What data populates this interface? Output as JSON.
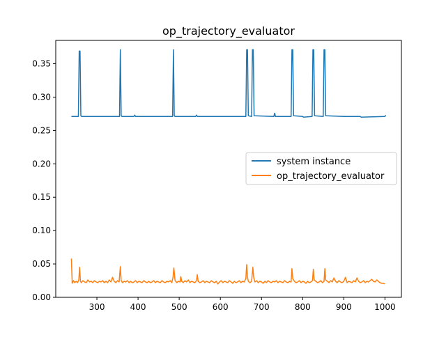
{
  "chart_data": {
    "type": "line",
    "title": "op_trajectory_evaluator",
    "xlabel": "",
    "ylabel": "",
    "xlim": [
      200,
      1040
    ],
    "ylim": [
      0,
      0.385
    ],
    "xticks": [
      300,
      400,
      500,
      600,
      700,
      800,
      900,
      1000
    ],
    "yticks": [
      0.0,
      0.05,
      0.1,
      0.15,
      0.2,
      0.25,
      0.3,
      0.35
    ],
    "ytick_labels": [
      "0.00",
      "0.05",
      "0.10",
      "0.15",
      "0.20",
      "0.25",
      "0.30",
      "0.35"
    ],
    "grid": false,
    "legend": {
      "placement": "center-right"
    },
    "series": [
      {
        "name": "system instance",
        "color": "#1f77b4",
        "x": [
          238,
          255,
          257,
          259,
          261,
          263,
          300,
          355,
          357,
          359,
          361,
          390,
          392,
          394,
          420,
          484,
          486,
          488,
          490,
          540,
          542,
          544,
          600,
          662,
          664,
          666,
          668,
          676,
          678,
          680,
          682,
          730,
          732,
          734,
          760,
          772,
          774,
          776,
          778,
          800,
          802,
          823,
          825,
          827,
          829,
          850,
          852,
          854,
          856,
          900,
          940,
          942,
          1000,
          1002
        ],
        "y": [
          0.271,
          0.271,
          0.369,
          0.369,
          0.272,
          0.271,
          0.271,
          0.271,
          0.371,
          0.272,
          0.271,
          0.271,
          0.273,
          0.271,
          0.271,
          0.271,
          0.371,
          0.272,
          0.271,
          0.271,
          0.273,
          0.271,
          0.271,
          0.271,
          0.371,
          0.371,
          0.272,
          0.271,
          0.371,
          0.371,
          0.272,
          0.271,
          0.276,
          0.271,
          0.271,
          0.271,
          0.371,
          0.371,
          0.272,
          0.271,
          0.27,
          0.271,
          0.371,
          0.371,
          0.272,
          0.271,
          0.371,
          0.371,
          0.272,
          0.271,
          0.271,
          0.27,
          0.271,
          0.273
        ]
      },
      {
        "name": "op_trajectory_evaluator",
        "color": "#ff7f0e",
        "x": [
          238,
          240,
          243,
          246,
          250,
          253,
          256,
          258,
          260,
          262,
          266,
          270,
          274,
          278,
          282,
          286,
          290,
          294,
          298,
          302,
          306,
          310,
          314,
          318,
          322,
          326,
          330,
          334,
          338,
          342,
          346,
          350,
          354,
          357,
          359,
          362,
          366,
          370,
          374,
          378,
          382,
          386,
          390,
          394,
          398,
          402,
          406,
          410,
          414,
          418,
          422,
          426,
          430,
          434,
          438,
          442,
          446,
          450,
          454,
          458,
          462,
          466,
          470,
          474,
          478,
          482,
          485,
          487,
          490,
          494,
          498,
          502,
          504,
          506,
          510,
          514,
          518,
          522,
          526,
          530,
          534,
          538,
          542,
          544,
          546,
          550,
          554,
          558,
          562,
          566,
          570,
          574,
          578,
          582,
          586,
          590,
          594,
          598,
          602,
          606,
          610,
          614,
          618,
          622,
          626,
          630,
          634,
          638,
          642,
          646,
          650,
          654,
          658,
          662,
          664,
          666,
          668,
          672,
          676,
          679,
          681,
          684,
          688,
          692,
          696,
          700,
          704,
          708,
          712,
          716,
          720,
          724,
          728,
          732,
          736,
          740,
          744,
          748,
          752,
          756,
          760,
          764,
          768,
          772,
          774,
          776,
          780,
          784,
          788,
          792,
          796,
          800,
          804,
          808,
          812,
          816,
          820,
          824,
          826,
          828,
          832,
          836,
          840,
          844,
          848,
          852,
          854,
          856,
          860,
          864,
          868,
          872,
          876,
          880,
          884,
          888,
          892,
          896,
          900,
          904,
          908,
          912,
          916,
          920,
          924,
          928,
          932,
          936,
          940,
          944,
          948,
          952,
          956,
          960,
          964,
          968,
          972,
          976,
          980,
          984,
          988,
          992,
          996,
          1000
        ],
        "y": [
          0.058,
          0.021,
          0.025,
          0.022,
          0.024,
          0.022,
          0.026,
          0.045,
          0.024,
          0.022,
          0.025,
          0.023,
          0.022,
          0.026,
          0.023,
          0.024,
          0.022,
          0.025,
          0.023,
          0.022,
          0.024,
          0.023,
          0.025,
          0.022,
          0.024,
          0.022,
          0.026,
          0.023,
          0.03,
          0.024,
          0.022,
          0.025,
          0.023,
          0.046,
          0.025,
          0.022,
          0.024,
          0.023,
          0.025,
          0.022,
          0.024,
          0.022,
          0.023,
          0.025,
          0.022,
          0.024,
          0.023,
          0.022,
          0.025,
          0.023,
          0.022,
          0.024,
          0.022,
          0.023,
          0.025,
          0.022,
          0.024,
          0.023,
          0.022,
          0.025,
          0.023,
          0.022,
          0.024,
          0.023,
          0.025,
          0.022,
          0.03,
          0.044,
          0.025,
          0.022,
          0.024,
          0.023,
          0.031,
          0.024,
          0.022,
          0.025,
          0.023,
          0.026,
          0.022,
          0.024,
          0.023,
          0.022,
          0.025,
          0.034,
          0.024,
          0.022,
          0.023,
          0.025,
          0.022,
          0.024,
          0.023,
          0.022,
          0.025,
          0.023,
          0.022,
          0.024,
          0.02,
          0.023,
          0.025,
          0.022,
          0.024,
          0.023,
          0.022,
          0.025,
          0.023,
          0.021,
          0.024,
          0.022,
          0.023,
          0.025,
          0.022,
          0.024,
          0.023,
          0.028,
          0.049,
          0.03,
          0.024,
          0.022,
          0.024,
          0.045,
          0.03,
          0.023,
          0.025,
          0.022,
          0.024,
          0.023,
          0.021,
          0.024,
          0.022,
          0.025,
          0.023,
          0.022,
          0.024,
          0.023,
          0.025,
          0.022,
          0.024,
          0.023,
          0.022,
          0.025,
          0.023,
          0.022,
          0.024,
          0.023,
          0.043,
          0.028,
          0.024,
          0.022,
          0.023,
          0.025,
          0.022,
          0.024,
          0.023,
          0.021,
          0.024,
          0.022,
          0.023,
          0.025,
          0.042,
          0.026,
          0.024,
          0.022,
          0.023,
          0.025,
          0.022,
          0.024,
          0.043,
          0.026,
          0.024,
          0.022,
          0.025,
          0.023,
          0.029,
          0.024,
          0.022,
          0.025,
          0.023,
          0.022,
          0.024,
          0.03,
          0.022,
          0.024,
          0.023,
          0.022,
          0.025,
          0.023,
          0.029,
          0.024,
          0.022,
          0.023,
          0.025,
          0.022,
          0.024,
          0.023,
          0.025,
          0.027,
          0.024,
          0.023,
          0.026,
          0.024,
          0.022,
          0.021,
          0.021,
          0.02
        ]
      }
    ]
  }
}
